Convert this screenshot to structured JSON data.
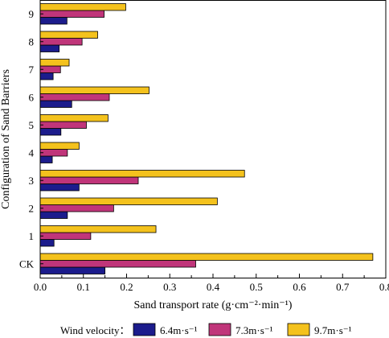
{
  "chart_data": {
    "type": "bar",
    "orientation": "horizontal",
    "categories": [
      "CK",
      "1",
      "2",
      "3",
      "4",
      "5",
      "6",
      "7",
      "8",
      "9"
    ],
    "series": [
      {
        "name": "6.4m·s⁻¹",
        "color": "#1c1c8c",
        "values": [
          0.15,
          0.032,
          0.063,
          0.09,
          0.028,
          0.048,
          0.073,
          0.03,
          0.044,
          0.062
        ]
      },
      {
        "name": "7.3m·s⁻¹",
        "color": "#c0357a",
        "values": [
          0.36,
          0.117,
          0.17,
          0.227,
          0.063,
          0.107,
          0.16,
          0.047,
          0.097,
          0.148
        ]
      },
      {
        "name": "9.7m·s⁻¹",
        "color": "#f4c21d",
        "values": [
          0.77,
          0.268,
          0.41,
          0.473,
          0.09,
          0.157,
          0.252,
          0.067,
          0.133,
          0.198
        ]
      }
    ],
    "xlabel": "Sand transport rate (g·cm⁻²·min⁻¹)",
    "ylabel": "Configuration  of Sand Barriers",
    "xlim": [
      0,
      0.8
    ],
    "xticks": [
      "0.0",
      "0.1",
      "0.2",
      "0.3",
      "0.4",
      "0.5",
      "0.6",
      "0.7",
      "0.8"
    ],
    "legend": {
      "title": "Wind velocity：",
      "placement": "bottom"
    },
    "grid": false
  }
}
